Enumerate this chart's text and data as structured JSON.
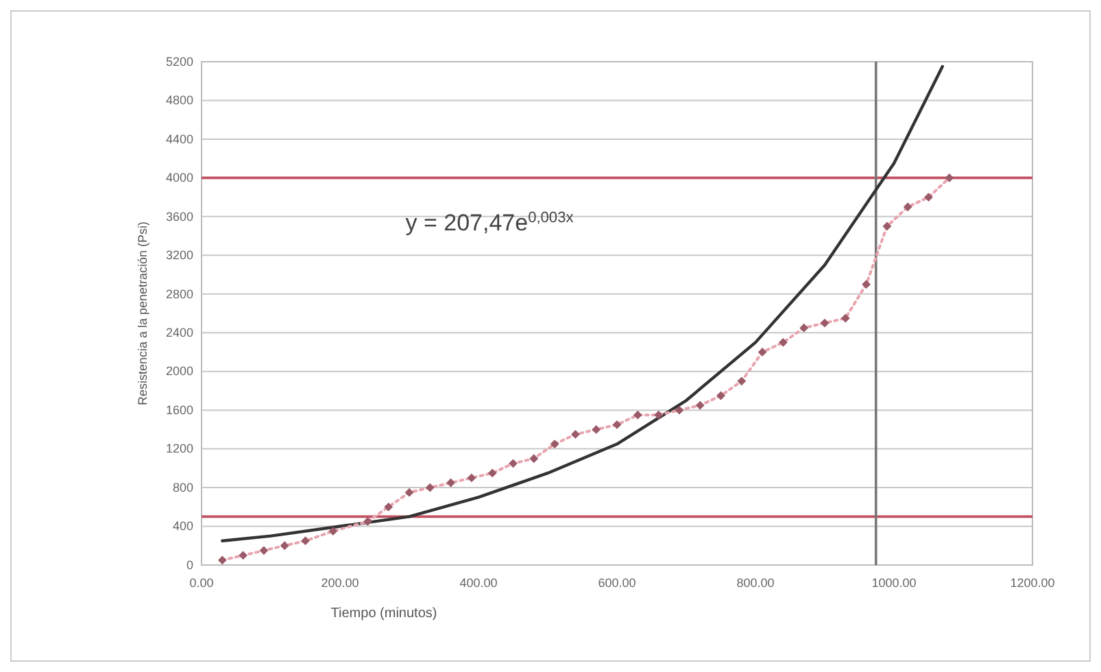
{
  "chart_data": {
    "type": "line",
    "xlabel": "Tiempo (minutos)",
    "ylabel": "Resistencia a la penetración (Psi)",
    "xlim": [
      0,
      1200
    ],
    "xticks": [
      {
        "value": 0,
        "label": "0.00"
      },
      {
        "value": 200,
        "label": "200.00"
      },
      {
        "value": 400,
        "label": "400.00"
      },
      {
        "value": 600,
        "label": "600.00"
      },
      {
        "value": 800,
        "label": "800.00"
      },
      {
        "value": 1000,
        "label": "1000.00"
      },
      {
        "value": 1200,
        "label": "1200.00"
      }
    ],
    "ylim": [
      0,
      5200
    ],
    "yticks": [
      0,
      400,
      800,
      1200,
      1600,
      2000,
      2400,
      2800,
      3200,
      3600,
      4000,
      4400,
      4800,
      5200
    ],
    "grid": "y",
    "series": [
      {
        "color": "#e8a4ae",
        "marker": "diamond",
        "line_style": "dotted",
        "x": [
          30,
          60,
          90,
          120,
          150,
          190,
          240,
          270,
          300,
          330,
          360,
          390,
          420,
          450,
          480,
          510,
          540,
          570,
          600,
          630,
          660,
          690,
          720,
          750,
          780,
          810,
          840,
          870,
          900,
          930,
          960,
          990,
          1020,
          1050,
          1080
        ],
        "values": [
          50,
          100,
          150,
          200,
          250,
          350,
          450,
          600,
          750,
          800,
          850,
          900,
          950,
          1050,
          1100,
          1250,
          1350,
          1400,
          1450,
          1550,
          1550,
          1600,
          1650,
          1750,
          1900,
          2200,
          2300,
          2450,
          2500,
          2550,
          2900,
          3500,
          3700,
          3800,
          4000
        ]
      },
      {
        "color": "#333333",
        "marker": "none",
        "line_style": "solid",
        "x": [
          30,
          100,
          200,
          300,
          400,
          500,
          600,
          700,
          800,
          900,
          1000,
          1070
        ],
        "values": [
          250,
          300,
          400,
          500,
          700,
          950,
          1250,
          1700,
          2300,
          3100,
          4150,
          5150
        ]
      }
    ],
    "ref_lines": [
      {
        "axis": "y",
        "value": 4000,
        "color": "#c05060"
      },
      {
        "axis": "y",
        "value": 500,
        "color": "#c05060"
      },
      {
        "axis": "x",
        "value": 974,
        "color": "#777777"
      }
    ],
    "annotations": [
      "y = 207,47e$^{0,003x}$"
    ]
  }
}
